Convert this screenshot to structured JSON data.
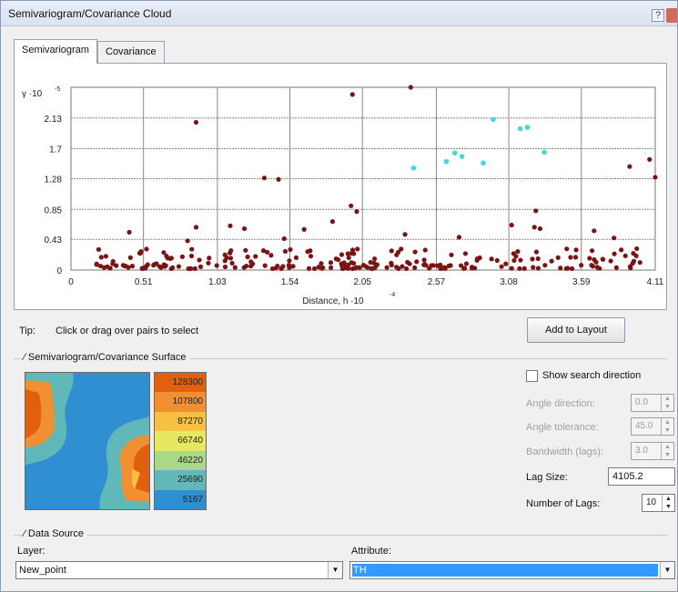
{
  "window": {
    "title": "Semivariogram/Covariance Cloud",
    "help": "?"
  },
  "tabs": [
    {
      "label": "Semivariogram",
      "active": true
    },
    {
      "label": "Covariance",
      "active": false
    }
  ],
  "chart_data": {
    "type": "scatter",
    "ylabel": "γ ·10",
    "ylabel_exp": "-5",
    "xlabel": "Distance, h ·10",
    "xlabel_exp": "-4",
    "xlim": [
      0,
      4.11
    ],
    "ylim": [
      0,
      2.56
    ],
    "x_ticks": [
      0,
      0.51,
      1.03,
      1.54,
      2.05,
      2.57,
      3.08,
      3.59,
      4.11
    ],
    "y_ticks": [
      0.43,
      0.85,
      1.28,
      1.7,
      2.13
    ],
    "y_tick_labels": [
      "0.43",
      "0.85",
      "1.28",
      "1.7",
      "2.13"
    ],
    "x_tick_labels": [
      "0",
      "0.51",
      "1.03",
      "1.54",
      "2.05",
      "2.57",
      "3.08",
      "3.59",
      "4.11"
    ],
    "grid": true,
    "series": [
      {
        "color": "#7a1414",
        "points": [
          [
            0.88,
            2.07
          ],
          [
            1.98,
            2.46
          ],
          [
            2.39,
            2.56
          ],
          [
            1.36,
            1.29
          ],
          [
            1.46,
            1.27
          ],
          [
            3.93,
            1.45
          ],
          [
            4.07,
            1.55
          ],
          [
            4.11,
            1.3
          ],
          [
            1.84,
            0.68
          ],
          [
            1.97,
            0.9
          ],
          [
            2.01,
            0.82
          ],
          [
            3.27,
            0.83
          ],
          [
            3.26,
            0.6
          ],
          [
            3.3,
            0.58
          ],
          [
            0.41,
            0.53
          ],
          [
            0.88,
            0.6
          ],
          [
            1.12,
            0.62
          ],
          [
            1.22,
            0.58
          ],
          [
            1.64,
            0.57
          ],
          [
            3.1,
            0.63
          ],
          [
            3.68,
            0.55
          ],
          [
            3.82,
            0.45
          ],
          [
            2.35,
            0.5
          ],
          [
            2.73,
            0.46
          ],
          [
            0.82,
            0.41
          ],
          [
            1.5,
            0.44
          ],
          [
            3.9,
            0.2
          ],
          [
            3.98,
            0.3
          ],
          [
            3.55,
            0.18
          ]
        ]
      },
      {
        "color": "#40d8d8",
        "points": [
          [
            2.41,
            1.43
          ],
          [
            2.64,
            1.52
          ],
          [
            2.7,
            1.64
          ],
          [
            2.75,
            1.59
          ],
          [
            2.9,
            1.5
          ],
          [
            2.97,
            2.11
          ],
          [
            3.16,
            1.98
          ],
          [
            3.21,
            2.0
          ],
          [
            3.33,
            1.65
          ]
        ]
      }
    ]
  },
  "tip": {
    "label": "Tip:",
    "text": "Click or drag over pairs to select"
  },
  "add_to_layout": "Add to Layout",
  "surface_group": {
    "title": "Semivariogram/Covariance Surface",
    "legend": [
      "128300",
      "107800",
      "87270",
      "66740",
      "46220",
      "25690",
      "5167"
    ],
    "legend_colors": [
      "#e06010",
      "#f09030",
      "#f7c040",
      "#e8e860",
      "#a8d888",
      "#60b8b8",
      "#2f8fd0"
    ]
  },
  "search": {
    "show_label": "Show search direction",
    "angle_direction": {
      "label": "Angle direction:",
      "value": "0.0"
    },
    "angle_tolerance": {
      "label": "Angle tolerance:",
      "value": "45.0"
    },
    "bandwidth": {
      "label": "Bandwidth (lags):",
      "value": "3.0"
    },
    "lag_size": {
      "label": "Lag Size:",
      "value": "4105.2"
    },
    "num_lags": {
      "label": "Number of Lags:",
      "value": "10"
    }
  },
  "data_source": {
    "title": "Data Source",
    "layer_label": "Layer:",
    "layer_value": "New_point",
    "attribute_label": "Attribute:",
    "attribute_value": "TH"
  }
}
